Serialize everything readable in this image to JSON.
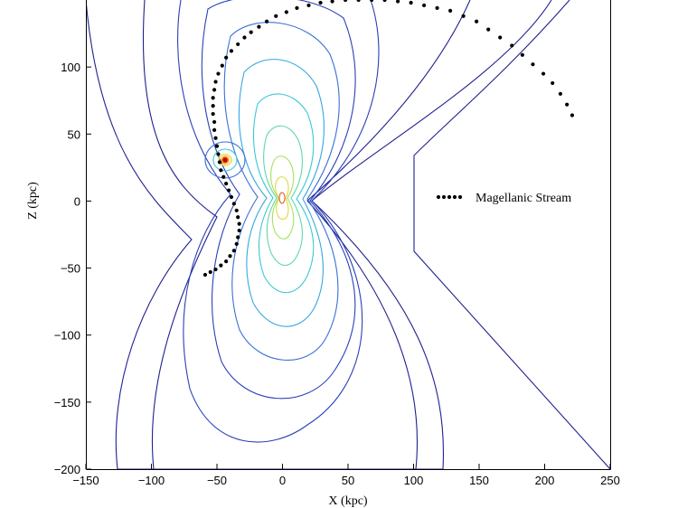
{
  "chart_data": {
    "type": "scatter",
    "title": "",
    "xlabel": "X (kpc)",
    "ylabel": "Z (kpc)",
    "xlim": [
      -150,
      250
    ],
    "ylim": [
      -200,
      150
    ],
    "x_ticks": [
      -150,
      -100,
      -50,
      0,
      50,
      100,
      150,
      200,
      250
    ],
    "y_ticks": [
      -200,
      -150,
      -100,
      -50,
      0,
      50,
      100
    ],
    "x_tick_labels": [
      "−150",
      "−100",
      "−50",
      "0",
      "50",
      "100",
      "150",
      "200",
      "250"
    ],
    "y_tick_labels": [
      "−200",
      "−150",
      "−100",
      "−50",
      "0",
      "50",
      "100"
    ],
    "grid": false,
    "legend": {
      "position": "right",
      "entries": [
        "Magellanic Stream"
      ]
    },
    "colors": {
      "stream": "#000000",
      "contour_outer": "#1a1aa0",
      "contour_mid": "#33c0e0",
      "contour_inner": "#e0e030",
      "lmc_core": "#c00000",
      "lmc_ring": "#ff8c00"
    },
    "background_field": {
      "description_series": "potential contours",
      "center_galaxy": [
        0,
        0
      ],
      "satellite": [
        -43,
        28
      ]
    },
    "series": [
      {
        "name": "Magellanic Stream",
        "marker": "dot",
        "x": [
          -59,
          -55,
          -51,
          -47,
          -43,
          -40,
          -37,
          -35,
          -34,
          -33,
          -33,
          -34,
          -35,
          -37,
          -39,
          -41,
          -43,
          -45,
          -47,
          -48,
          -49,
          -50,
          -51,
          -52,
          -52,
          -53,
          -53,
          -53,
          -52,
          -51,
          -49,
          -46,
          -43,
          -39,
          -34,
          -29,
          -24,
          -18,
          -12,
          -5,
          3,
          11,
          20,
          29,
          38,
          48,
          58,
          68,
          78,
          88,
          98,
          108,
          118,
          128,
          138,
          148,
          157,
          166,
          175,
          183,
          191,
          199,
          206,
          212,
          217,
          221
        ],
        "y": [
          -55,
          -53,
          -51,
          -48,
          -45,
          -41,
          -37,
          -32,
          -27,
          -22,
          -17,
          -12,
          -7,
          -2,
          3,
          8,
          13,
          18,
          23,
          29,
          35,
          41,
          47,
          53,
          59,
          65,
          71,
          77,
          83,
          89,
          95,
          101,
          107,
          112,
          117,
          122,
          126,
          130,
          134,
          138,
          141,
          144,
          146,
          148,
          149,
          150,
          150,
          150,
          150,
          149,
          148,
          146,
          144,
          142,
          138,
          134,
          128,
          122,
          116,
          109,
          102,
          95,
          88,
          80,
          72,
          64
        ]
      }
    ]
  }
}
